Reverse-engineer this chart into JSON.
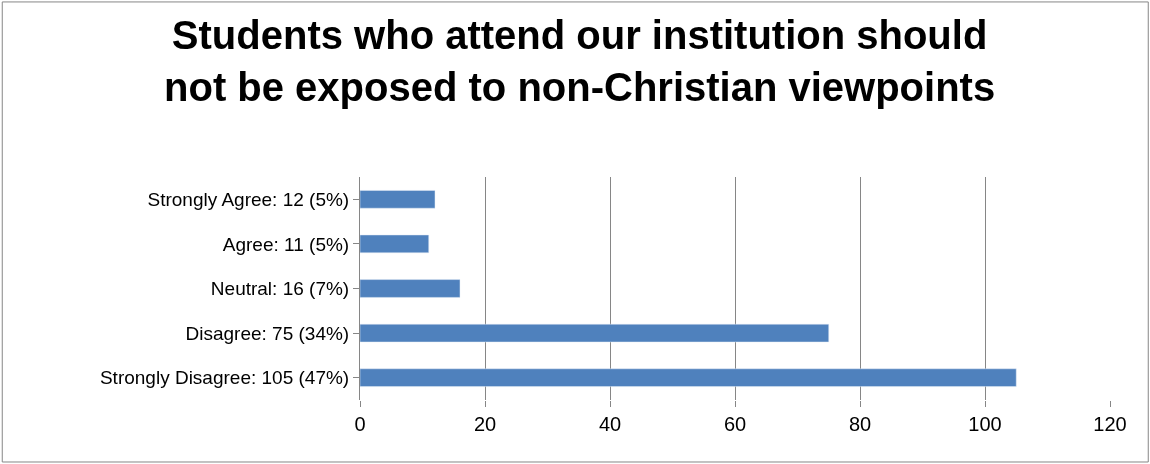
{
  "chart_data": {
    "type": "bar",
    "orientation": "horizontal",
    "title": "Students who attend our institution should\nnot be exposed to non-Christian viewpoints",
    "categories": [
      "Strongly Agree: 12 (5%)",
      "Agree: 11 (5%)",
      "Neutral: 16 (7%)",
      "Disagree: 75 (34%)",
      "Strongly Disagree: 105 (47%)"
    ],
    "values": [
      12,
      11,
      16,
      75,
      105
    ],
    "color": "#4f81bd",
    "xlim": [
      0,
      120
    ],
    "xticks": [
      0,
      20,
      40,
      60,
      80,
      100,
      120
    ],
    "grid": "x"
  }
}
